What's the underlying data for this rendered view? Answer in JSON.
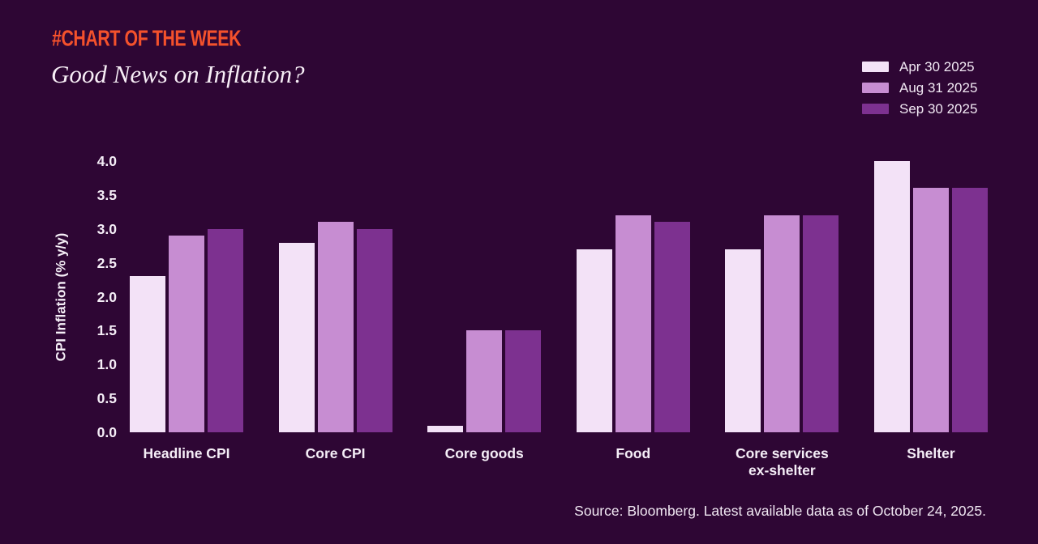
{
  "header": {
    "kicker": "#CHART OF THE WEEK",
    "title": "Good News on Inflation?"
  },
  "source_note": "Source: Bloomberg. Latest available data as of October 24, 2025.",
  "colors": {
    "background": "#2e0634",
    "kicker_orange": "#f4512c",
    "text_light": "#f5eef7",
    "series_apr": "#f3e2f7",
    "series_aug": "#c78dd2",
    "series_sep": "#7d3190"
  },
  "chart_data": {
    "type": "bar",
    "title": "Good News on Inflation?",
    "xlabel": "",
    "ylabel": "CPI Inflation (% y/y)",
    "ylim": [
      0.0,
      4.0
    ],
    "ytick_step": 0.5,
    "yticks": [
      0.0,
      0.5,
      1.0,
      1.5,
      2.0,
      2.5,
      3.0,
      3.5,
      4.0
    ],
    "grid": false,
    "legend_position": "top-right",
    "categories": [
      "Headline CPI",
      "Core CPI",
      "Core goods",
      "Food",
      "Core services ex-shelter",
      "Shelter"
    ],
    "category_label_lines": [
      [
        "Headline CPI"
      ],
      [
        "Core CPI"
      ],
      [
        "Core goods"
      ],
      [
        "Food"
      ],
      [
        "Core services",
        "ex-shelter"
      ],
      [
        "Shelter"
      ]
    ],
    "series": [
      {
        "name": "Apr 30 2025",
        "color": "#f3e2f7",
        "values": [
          2.3,
          2.8,
          0.1,
          2.7,
          2.7,
          4.0
        ]
      },
      {
        "name": "Aug 31 2025",
        "color": "#c78dd2",
        "values": [
          2.9,
          3.1,
          1.5,
          3.2,
          3.2,
          3.6
        ]
      },
      {
        "name": "Sep 30 2025",
        "color": "#7d3190",
        "values": [
          3.0,
          3.0,
          1.5,
          3.1,
          3.2,
          3.6
        ]
      }
    ]
  }
}
